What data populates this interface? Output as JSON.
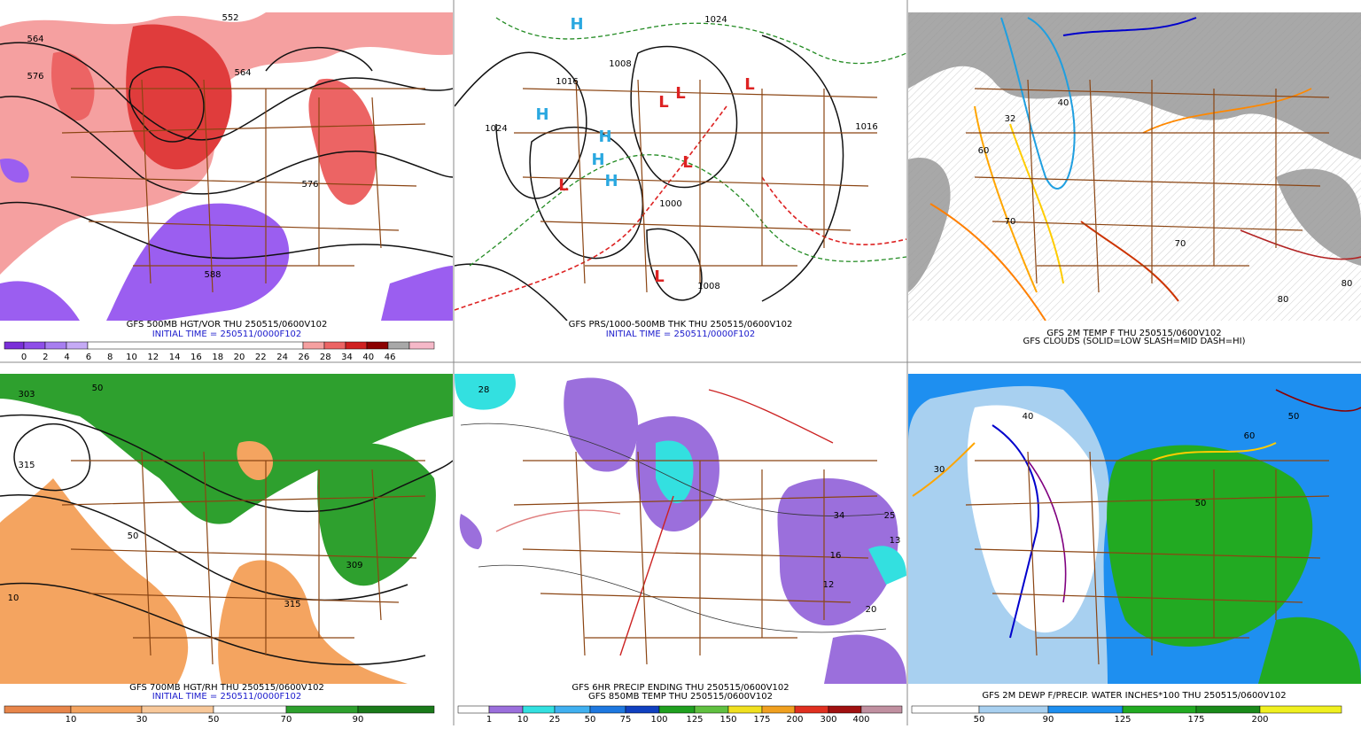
{
  "panels": [
    {
      "captions": [
        "GFS 500MB HGT/VOR THU 250515/0600V102",
        "INITIAL TIME = 250511/0000F102"
      ],
      "colorbar_labels": [
        "0",
        "2",
        "4",
        "6",
        "8",
        "10",
        "12",
        "14",
        "16",
        "18",
        "20",
        "22",
        "24",
        "26",
        "28",
        "34",
        "40",
        "46"
      ],
      "map_labels": [
        "564",
        "576",
        "564",
        "576",
        "588",
        "552"
      ]
    },
    {
      "captions": [
        "GFS PRS/1000-500MB THK THU 250515/0600V102",
        "INITIAL TIME = 250511/0000F102"
      ],
      "colorbar_labels": [],
      "map_labels": [
        "1024",
        "1016",
        "1008",
        "1000",
        "1008",
        "1024",
        "1016",
        "H",
        "H",
        "H",
        "H",
        "H",
        "L",
        "L",
        "L",
        "L",
        "L",
        "L"
      ]
    },
    {
      "captions": [
        "GFS 2M TEMP F THU 250515/0600V102",
        "GFS CLOUDS (SOLID=LOW SLASH=MID DASH=HI)"
      ],
      "colorbar_labels": [],
      "map_labels": [
        "32",
        "40",
        "60",
        "70",
        "80",
        "80",
        "70"
      ]
    },
    {
      "captions": [
        "GFS 700MB HGT/RH THU 250515/0600V102",
        "INITIAL TIME = 250511/0000F102"
      ],
      "colorbar_labels": [
        "10",
        "30",
        "50",
        "70",
        "90"
      ],
      "map_labels": [
        "303",
        "315",
        "50",
        "50",
        "309",
        "315",
        "10"
      ]
    },
    {
      "captions": [
        "GFS 6HR PRECIP ENDING THU 250515/0600V102",
        "GFS 850MB TEMP THU 250515/0600V102"
      ],
      "colorbar_labels": [
        "1",
        "10",
        "25",
        "50",
        "75",
        "100",
        "125",
        "150",
        "175",
        "200",
        "300",
        "400"
      ],
      "map_labels": [
        "28",
        "34",
        "25",
        "16",
        "12",
        "20",
        "13"
      ]
    },
    {
      "captions": [
        "GFS 2M DEWP F/PRECIP. WATER INCHES*100 THU 250515/0600V102"
      ],
      "colorbar_labels": [
        "50",
        "90",
        "125",
        "175",
        "200"
      ],
      "map_labels": [
        "40",
        "30",
        "50",
        "60",
        "50"
      ]
    }
  ]
}
